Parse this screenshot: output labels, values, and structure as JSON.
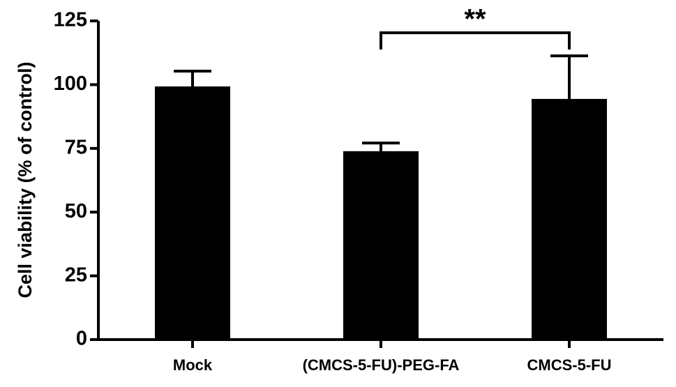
{
  "chart_data": {
    "type": "bar",
    "y_label": "Cell viability (% of control)",
    "categories": [
      "Mock",
      "(CMCS-5-FU)-PEG-FA",
      "CMCS-5-FU"
    ],
    "values": [
      99.3,
      73.9,
      94.4
    ],
    "errors": [
      6.0,
      3.2,
      16.9
    ],
    "color": "#000000",
    "ylim": [
      0,
      125
    ],
    "yticks": [
      0,
      25,
      50,
      75,
      100,
      125
    ],
    "annotations": [
      {
        "text": "**",
        "between": [
          1,
          2
        ]
      }
    ]
  }
}
